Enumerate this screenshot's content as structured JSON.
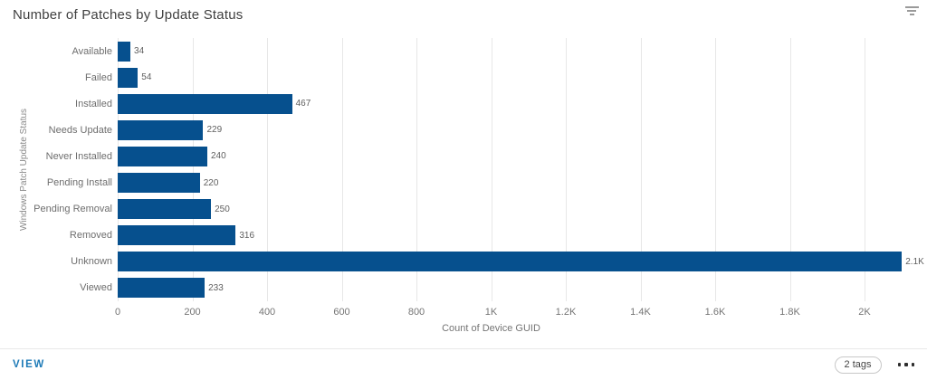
{
  "header": {
    "title": "Number of Patches by Update Status"
  },
  "chart_data": {
    "type": "bar",
    "orientation": "horizontal",
    "title": "Number of Patches by Update Status",
    "xlabel": "Count of Device GUID",
    "ylabel": "Windows Patch Update Status",
    "categories": [
      "Available",
      "Failed",
      "Installed",
      "Needs Update",
      "Never Installed",
      "Pending Install",
      "Pending Removal",
      "Removed",
      "Unknown",
      "Viewed"
    ],
    "values": [
      34,
      54,
      467,
      229,
      240,
      220,
      250,
      316,
      2100,
      233
    ],
    "value_labels": [
      "34",
      "54",
      "467",
      "229",
      "240",
      "220",
      "250",
      "316",
      "2.1K",
      "233"
    ],
    "xlim": [
      0,
      2000
    ],
    "x_ticks": [
      {
        "value": 0,
        "label": "0"
      },
      {
        "value": 200,
        "label": "200"
      },
      {
        "value": 400,
        "label": "400"
      },
      {
        "value": 600,
        "label": "600"
      },
      {
        "value": 800,
        "label": "800"
      },
      {
        "value": 1000,
        "label": "1K"
      },
      {
        "value": 1200,
        "label": "1.2K"
      },
      {
        "value": 1400,
        "label": "1.4K"
      },
      {
        "value": 1600,
        "label": "1.6K"
      },
      {
        "value": 1800,
        "label": "1.8K"
      },
      {
        "value": 2000,
        "label": "2K"
      }
    ],
    "grid": "vertical",
    "legend": "none",
    "bar_color": "#06508e"
  },
  "footer": {
    "view_label": "VIEW",
    "tags_badge": "2 tags"
  },
  "colors": {
    "bar": "#06508e",
    "gridline": "#e7e7e7",
    "action_link": "#1d7ab7",
    "title_text": "#404040",
    "axis_text": "#757575"
  }
}
